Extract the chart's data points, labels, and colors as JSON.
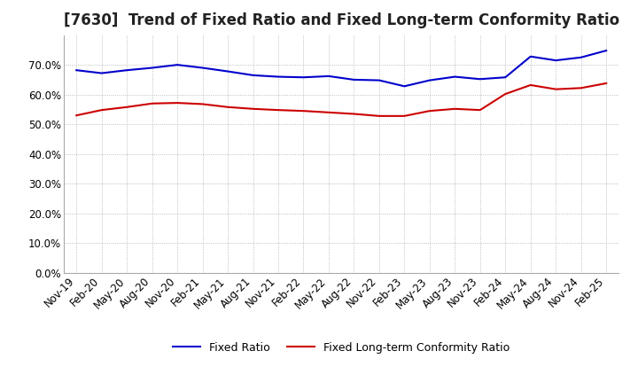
{
  "title": "[7630]  Trend of Fixed Ratio and Fixed Long-term Conformity Ratio",
  "x_labels": [
    "Nov-19",
    "Feb-20",
    "May-20",
    "Aug-20",
    "Nov-20",
    "Feb-21",
    "May-21",
    "Aug-21",
    "Nov-21",
    "Feb-22",
    "May-22",
    "Aug-22",
    "Nov-22",
    "Feb-23",
    "May-23",
    "Aug-23",
    "Nov-23",
    "Feb-24",
    "May-24",
    "Aug-24",
    "Nov-24",
    "Feb-25"
  ],
  "fixed_ratio": [
    0.682,
    0.672,
    0.682,
    0.69,
    0.7,
    0.69,
    0.678,
    0.665,
    0.66,
    0.658,
    0.662,
    0.65,
    0.648,
    0.628,
    0.648,
    0.66,
    0.652,
    0.658,
    0.728,
    0.715,
    0.725,
    0.748
  ],
  "fixed_longterm": [
    0.53,
    0.548,
    0.558,
    0.57,
    0.572,
    0.568,
    0.558,
    0.552,
    0.548,
    0.545,
    0.54,
    0.535,
    0.528,
    0.528,
    0.545,
    0.552,
    0.548,
    0.602,
    0.632,
    0.618,
    0.622,
    0.638
  ],
  "fixed_ratio_color": "#0000cc",
  "fixed_longterm_color": "#cc0000",
  "ylim": [
    0.0,
    0.8
  ],
  "yticks": [
    0.0,
    0.1,
    0.2,
    0.3,
    0.4,
    0.5,
    0.6,
    0.7
  ],
  "background_color": "#ffffff",
  "grid_color": "#aaaaaa",
  "legend_fixed": "Fixed Ratio",
  "legend_longterm": "Fixed Long-term Conformity Ratio",
  "title_fontsize": 12,
  "label_fontsize": 8.5,
  "legend_fontsize": 9,
  "line_width": 1.5
}
